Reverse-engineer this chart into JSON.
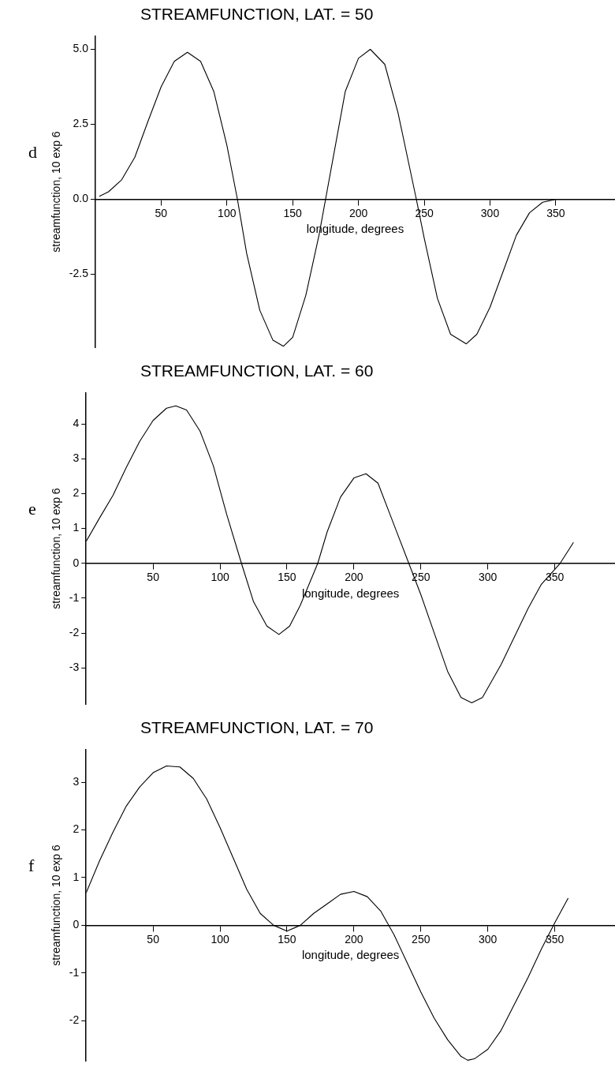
{
  "chart_data": [
    {
      "type": "line",
      "title": "STREAMFUNCTION, LAT. = 50",
      "xlabel": "longitude, degrees",
      "ylabel": "streamfunction, 10 exp 6",
      "annotations": [
        "d"
      ],
      "xlim": [
        0,
        395
      ],
      "xticks": [
        50,
        100,
        150,
        200,
        250,
        300,
        350
      ],
      "ylim": [
        -4.95,
        5.45
      ],
      "yticks": [
        {
          "value": -2.5,
          "label": "-2.5"
        },
        {
          "value": 0,
          "label": "0.0"
        },
        {
          "value": 2.5,
          "label": "2.5"
        },
        {
          "value": 5,
          "label": "5.0"
        }
      ],
      "grid": false,
      "legend": false,
      "marker": "none",
      "line_style": "solid",
      "series": [
        {
          "color": "#000000",
          "x": [
            3,
            10,
            20,
            30,
            40,
            50,
            60,
            70,
            80,
            90,
            100,
            108,
            115,
            125,
            135,
            143,
            150,
            160,
            170,
            175,
            180,
            190,
            200,
            209,
            220,
            230,
            244,
            250,
            260,
            270,
            282,
            290,
            300,
            310,
            320,
            330,
            340,
            350,
            360
          ],
          "values": [
            0.1,
            0.25,
            0.65,
            1.4,
            2.6,
            3.75,
            4.6,
            4.9,
            4.6,
            3.6,
            1.8,
            0,
            -1.8,
            -3.7,
            -4.7,
            -4.9,
            -4.6,
            -3.2,
            -1.2,
            0,
            1.2,
            3.6,
            4.7,
            5.0,
            4.5,
            2.9,
            0,
            -1.3,
            -3.3,
            -4.5,
            -4.82,
            -4.5,
            -3.6,
            -2.4,
            -1.2,
            -0.45,
            -0.1,
            0,
            0
          ]
        }
      ]
    },
    {
      "type": "line",
      "title": "STREAMFUNCTION, LAT. = 60",
      "xlabel": "longitude, degrees",
      "ylabel": "streamfunction, 10 exp 6",
      "annotations": [
        "e"
      ],
      "xlim": [
        0,
        395
      ],
      "xticks": [
        50,
        100,
        150,
        200,
        250,
        300,
        350
      ],
      "ylim": [
        -4.05,
        4.9
      ],
      "yticks": [
        -3,
        -2,
        -1,
        0,
        1,
        2,
        3,
        4
      ],
      "grid": false,
      "legend": false,
      "marker": "none",
      "line_style": "solid",
      "series": [
        {
          "color": "#000000",
          "x": [
            0,
            10,
            20,
            30,
            40,
            50,
            60,
            67,
            75,
            85,
            95,
            105,
            116,
            125,
            135,
            144,
            152,
            160,
            173,
            180,
            190,
            200,
            209,
            218,
            228,
            241,
            250,
            260,
            270,
            280,
            288,
            296,
            310,
            320,
            330,
            340,
            354,
            364
          ],
          "values": [
            0.63,
            1.3,
            1.95,
            2.75,
            3.5,
            4.1,
            4.45,
            4.52,
            4.4,
            3.8,
            2.8,
            1.4,
            0,
            -1.1,
            -1.8,
            -2.04,
            -1.8,
            -1.2,
            0,
            0.9,
            1.9,
            2.45,
            2.57,
            2.3,
            1.3,
            0,
            -0.9,
            -2.0,
            -3.1,
            -3.85,
            -4.0,
            -3.85,
            -2.9,
            -2.1,
            -1.3,
            -0.6,
            0,
            0.6
          ]
        }
      ]
    },
    {
      "type": "line",
      "title": "STREAMFUNCTION, LAT. = 70",
      "xlabel": "longitude, degrees",
      "ylabel": "streamfunction, 10 exp 6",
      "annotations": [
        "f"
      ],
      "xlim": [
        0,
        395
      ],
      "xticks": [
        50,
        100,
        150,
        200,
        250,
        300,
        350
      ],
      "ylim": [
        -2.85,
        3.69
      ],
      "yticks": [
        -2,
        -1,
        0,
        1,
        2,
        3
      ],
      "grid": false,
      "legend": false,
      "marker": "none",
      "line_style": "solid",
      "series": [
        {
          "color": "#000000",
          "x": [
            0,
            10,
            20,
            30,
            40,
            50,
            60,
            70,
            80,
            90,
            100,
            110,
            120,
            130,
            140,
            150,
            160,
            170,
            180,
            190,
            200,
            210,
            220,
            230,
            240,
            250,
            260,
            270,
            280,
            285,
            290,
            300,
            310,
            320,
            330,
            340,
            350,
            360
          ],
          "values": [
            0.68,
            1.35,
            1.95,
            2.5,
            2.9,
            3.2,
            3.34,
            3.32,
            3.08,
            2.65,
            2.05,
            1.4,
            0.75,
            0.25,
            0,
            -0.12,
            0,
            0.25,
            0.45,
            0.65,
            0.71,
            0.6,
            0.3,
            -0.2,
            -0.8,
            -1.4,
            -1.95,
            -2.4,
            -2.75,
            -2.83,
            -2.8,
            -2.6,
            -2.2,
            -1.65,
            -1.1,
            -0.5,
            0.05,
            0.57
          ]
        }
      ]
    }
  ]
}
